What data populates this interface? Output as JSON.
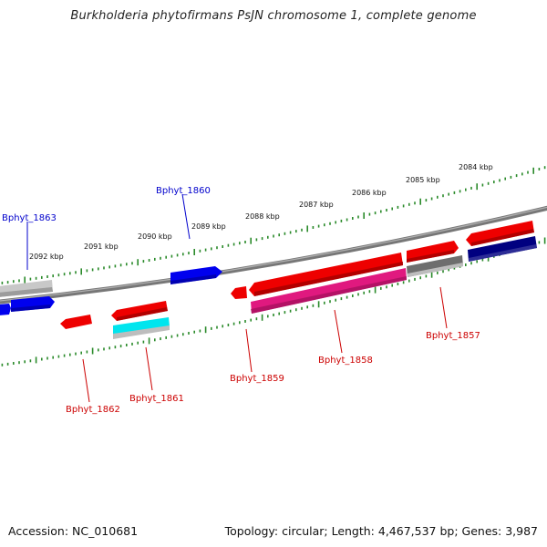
{
  "title": "Burkholderia phytofirmans PsJN chromosome 1, complete genome",
  "footer": {
    "accession": "Accession: NC_010681",
    "summary": "Topology: circular; Length: 4,467,537 bp; Genes: 3,987"
  },
  "colors": {
    "backbone": "#7a7a7a",
    "ruler_dots": "#2a8a2a",
    "label_top": "#0000cc",
    "label_bottom": "#cc0000",
    "red": "#ee0000",
    "blue": "#0000ee",
    "navy": "#000080",
    "magenta": "#e0197f",
    "cyan": "#00e5ee",
    "gray": "#7a7a7a",
    "lightgray": "#bdbdbd"
  },
  "ruler_ticks": [
    "2084 kbp",
    "2085 kbp",
    "2086 kbp",
    "2087 kbp",
    "2088 kbp",
    "2089 kbp",
    "2090 kbp",
    "2091 kbp",
    "2092 kbp"
  ],
  "gene_labels": {
    "bphyt_1863": "Bphyt_1863",
    "bphyt_1860": "Bphyt_1860",
    "bphyt_1862": "Bphyt_1862",
    "bphyt_1861": "Bphyt_1861",
    "bphyt_1859": "Bphyt_1859",
    "bphyt_1858": "Bphyt_1858",
    "bphyt_1857": "Bphyt_1857"
  }
}
